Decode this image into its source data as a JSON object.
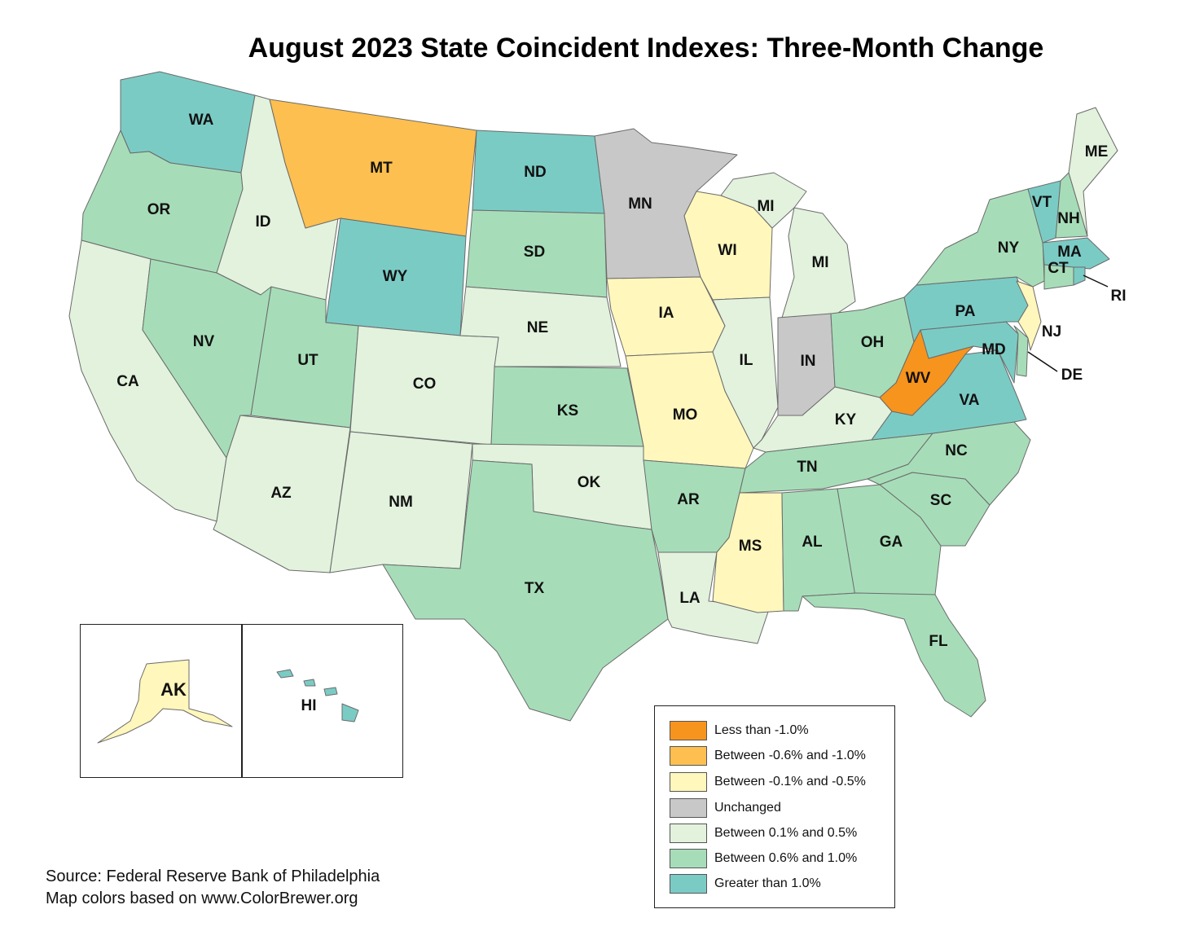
{
  "title": "August 2023 State Coincident Indexes: Three-Month Change",
  "colors": {
    "less_than_neg1": "#f7941d",
    "neg06_neg10": "#fdbf4f",
    "neg01_neg05": "#fff7bc",
    "unchanged": "#c8c8c8",
    "pos01_05": "#e2f2dd",
    "pos06_10": "#a6ddb8",
    "gt1": "#7bcbc5",
    "border": "#6b6b6b"
  },
  "legend": [
    {
      "label": "Less than -1.0%",
      "color": "#f7941d"
    },
    {
      "label": "Between -0.6% and -1.0%",
      "color": "#fdbf4f"
    },
    {
      "label": "Between -0.1% and -0.5%",
      "color": "#fff7bc"
    },
    {
      "label": "Unchanged",
      "color": "#c8c8c8"
    },
    {
      "label": "Between 0.1% and 0.5%",
      "color": "#e2f2dd"
    },
    {
      "label": "Between 0.6% and 1.0%",
      "color": "#a6ddb8"
    },
    {
      "label": "Greater than 1.0%",
      "color": "#7bcbc5"
    }
  ],
  "states": {
    "WA": "Greater than 1.0%",
    "OR": "Between 0.6% and 1.0%",
    "CA": "Between 0.1% and 0.5%",
    "ID": "Between 0.1% and 0.5%",
    "NV": "Between 0.6% and 1.0%",
    "MT": "Between -0.6% and -1.0%",
    "WY": "Greater than 1.0%",
    "UT": "Between 0.6% and 1.0%",
    "AZ": "Between 0.1% and 0.5%",
    "CO": "Between 0.1% and 0.5%",
    "NM": "Between 0.1% and 0.5%",
    "ND": "Greater than 1.0%",
    "SD": "Between 0.6% and 1.0%",
    "NE": "Between 0.1% and 0.5%",
    "KS": "Between 0.6% and 1.0%",
    "OK": "Between 0.1% and 0.5%",
    "TX": "Between 0.6% and 1.0%",
    "MN": "Unchanged",
    "IA": "Between -0.1% and -0.5%",
    "MO": "Between -0.1% and -0.5%",
    "AR": "Between 0.6% and 1.0%",
    "LA": "Between 0.1% and 0.5%",
    "WI": "Between -0.1% and -0.5%",
    "IL": "Between 0.1% and 0.5%",
    "MI": "Between 0.1% and 0.5%",
    "IN": "Unchanged",
    "OH": "Between 0.6% and 1.0%",
    "KY": "Between 0.1% and 0.5%",
    "TN": "Between 0.6% and 1.0%",
    "MS": "Between -0.1% and -0.5%",
    "AL": "Between 0.6% and 1.0%",
    "GA": "Between 0.6% and 1.0%",
    "FL": "Between 0.6% and 1.0%",
    "SC": "Between 0.6% and 1.0%",
    "NC": "Between 0.6% and 1.0%",
    "VA": "Greater than 1.0%",
    "WV": "Less than -1.0%",
    "MD": "Greater than 1.0%",
    "DE": "Between 0.6% and 1.0%",
    "NJ": "Between -0.1% and -0.5%",
    "PA": "Greater than 1.0%",
    "NY": "Between 0.6% and 1.0%",
    "CT": "Between 0.6% and 1.0%",
    "RI": "Greater than 1.0%",
    "MA": "Greater than 1.0%",
    "VT": "Greater than 1.0%",
    "NH": "Between 0.6% and 1.0%",
    "ME": "Between 0.1% and 0.5%",
    "AK": "Between -0.1% and -0.5%",
    "HI": "Greater than 1.0%"
  },
  "labels": {
    "WA": "WA",
    "OR": "OR",
    "CA": "CA",
    "ID": "ID",
    "NV": "NV",
    "MT": "MT",
    "WY": "WY",
    "UT": "UT",
    "AZ": "AZ",
    "CO": "CO",
    "NM": "NM",
    "ND": "ND",
    "SD": "SD",
    "NE": "NE",
    "KS": "KS",
    "OK": "OK",
    "TX": "TX",
    "MN": "MN",
    "IA": "IA",
    "MO": "MO",
    "AR": "AR",
    "LA": "LA",
    "WI": "WI",
    "IL": "IL",
    "MI": "MI",
    "MI_UP": "MI",
    "IN": "IN",
    "OH": "OH",
    "KY": "KY",
    "TN": "TN",
    "MS": "MS",
    "AL": "AL",
    "GA": "GA",
    "FL": "FL",
    "SC": "SC",
    "NC": "NC",
    "VA": "VA",
    "WV": "WV",
    "MD": "MD",
    "DE": "DE",
    "NJ": "NJ",
    "PA": "PA",
    "NY": "NY",
    "CT": "CT",
    "RI": "RI",
    "MA": "MA",
    "VT": "VT",
    "NH": "NH",
    "ME": "ME",
    "AK": "AK",
    "HI": "HI"
  },
  "source": {
    "line1": "Source: Federal Reserve Bank of Philadelphia",
    "line2": "Map colors based on www.ColorBrewer.org"
  }
}
